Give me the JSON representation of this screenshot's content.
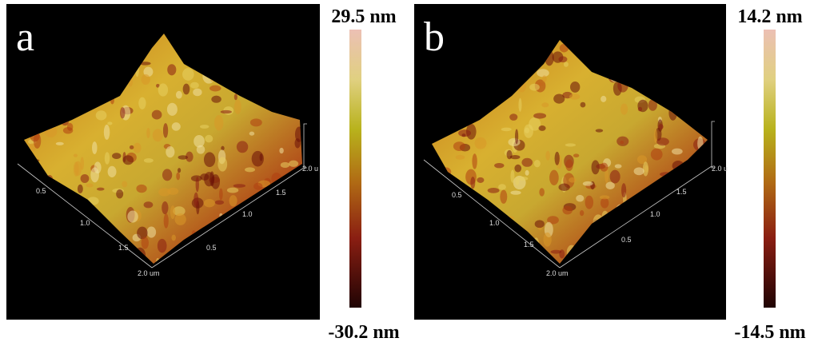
{
  "panels": [
    {
      "label": "a",
      "scale_max": "29.5 nm",
      "scale_min": "-30.2 nm",
      "axis_left": [
        "0.5",
        "1.0",
        "1.5",
        "2.0 um"
      ],
      "axis_right": [
        "0.5",
        "1.0",
        "1.5",
        "2.0 u"
      ]
    },
    {
      "label": "b",
      "scale_max": "14.2 nm",
      "scale_min": "-14.5 nm",
      "axis_left": [
        "0.5",
        "1.0",
        "1.5",
        "2.0 um"
      ],
      "axis_right": [
        "0.5",
        "1.0",
        "1.5",
        "2.0 u"
      ]
    }
  ]
}
